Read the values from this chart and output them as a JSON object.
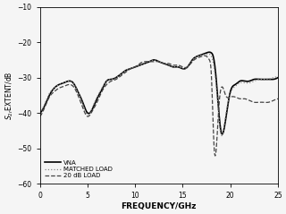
{
  "title": "",
  "xlabel": "FREQUENCY/GHz",
  "ylabel": "$S_{2r}$EXTENT/dB",
  "xlim": [
    0,
    25
  ],
  "ylim": [
    -60,
    -10
  ],
  "yticks": [
    -60,
    -50,
    -40,
    -30,
    -20,
    -10
  ],
  "xticks": [
    0,
    5,
    10,
    15,
    20,
    25
  ],
  "legend": [
    "VNA",
    "MATCHED LOAD",
    "20 dB LOAD"
  ],
  "background_color": "#f5f5f5",
  "vna_freq": [
    0,
    0.5,
    1.0,
    1.5,
    2.0,
    2.5,
    3.0,
    3.5,
    4.0,
    4.5,
    5.0,
    5.5,
    6.0,
    6.5,
    7.0,
    7.5,
    8.0,
    8.5,
    9.0,
    9.5,
    10.0,
    10.5,
    11.0,
    11.5,
    12.0,
    12.5,
    13.0,
    13.5,
    14.0,
    14.5,
    15.0,
    15.5,
    16.0,
    16.5,
    17.0,
    17.5,
    18.0,
    18.2,
    18.5,
    19.0,
    19.5,
    20.0,
    20.5,
    21.0,
    21.5,
    22.0,
    22.5,
    23.0,
    23.5,
    24.0,
    24.5,
    25.0
  ],
  "vna_vals": [
    -40,
    -38,
    -35,
    -33,
    -32,
    -31.5,
    -31,
    -31.5,
    -34,
    -37,
    -40,
    -39,
    -36,
    -33.5,
    -31,
    -30.5,
    -30,
    -29,
    -28,
    -27.5,
    -27,
    -26.5,
    -26,
    -25.5,
    -25,
    -25.5,
    -26,
    -26.5,
    -27,
    -27,
    -27.5,
    -27,
    -25,
    -24,
    -23.5,
    -23,
    -23,
    -24,
    -30,
    -45,
    -42,
    -34,
    -32,
    -31,
    -31,
    -31,
    -30.5,
    -30.5,
    -30.5,
    -30.5,
    -30.5,
    -30
  ],
  "match_freq": [
    0,
    0.5,
    1.0,
    1.5,
    2.0,
    2.5,
    3.0,
    3.5,
    4.0,
    4.5,
    5.0,
    5.5,
    6.0,
    6.5,
    7.0,
    7.5,
    8.0,
    8.5,
    9.0,
    9.5,
    10.0,
    10.5,
    11.0,
    11.5,
    12.0,
    12.5,
    13.0,
    13.5,
    14.0,
    14.5,
    15.0,
    15.5,
    16.0,
    16.5,
    17.0,
    17.5,
    18.0,
    18.5,
    19.0,
    19.5,
    20.0,
    20.5,
    21.0,
    21.5,
    22.0,
    22.5,
    23.0,
    23.5,
    24.0,
    24.5,
    25.0
  ],
  "match_vals": [
    -40,
    -37.5,
    -34.5,
    -33,
    -32,
    -31.5,
    -31,
    -31.5,
    -34,
    -37.5,
    -40.5,
    -38.5,
    -35.5,
    -33,
    -31,
    -30.5,
    -30,
    -29,
    -28,
    -27.5,
    -27,
    -26.5,
    -26,
    -25.5,
    -25,
    -25.5,
    -26,
    -26.5,
    -27,
    -27,
    -27.5,
    -27,
    -25,
    -24,
    -23.5,
    -23.5,
    -24,
    -32,
    -46,
    -41,
    -34.5,
    -32.5,
    -31.5,
    -31.5,
    -31.5,
    -31,
    -30.5,
    -30.5,
    -30.5,
    -30,
    -30
  ],
  "load_freq": [
    0,
    0.5,
    1.0,
    1.5,
    2.0,
    2.5,
    3.0,
    3.5,
    4.0,
    4.5,
    5.0,
    5.5,
    6.0,
    6.5,
    7.0,
    7.5,
    8.0,
    8.5,
    9.0,
    9.5,
    10.0,
    10.5,
    11.0,
    11.5,
    12.0,
    12.5,
    13.0,
    13.5,
    14.0,
    14.5,
    15.0,
    15.5,
    16.0,
    16.5,
    17.0,
    17.5,
    17.8,
    18.0,
    18.3,
    18.8,
    19.5,
    20.0,
    20.5,
    21.0,
    21.5,
    22.0,
    22.5,
    23.0,
    23.5,
    24.0,
    24.5,
    25.0
  ],
  "load_vals": [
    -41,
    -38.5,
    -35.5,
    -34,
    -33,
    -32.5,
    -32,
    -32.5,
    -35,
    -38.5,
    -41,
    -39.5,
    -37,
    -34,
    -32,
    -31,
    -30.5,
    -29.5,
    -28.5,
    -27.5,
    -27,
    -26,
    -25.5,
    -25.5,
    -25.5,
    -25.5,
    -26,
    -26,
    -26.5,
    -26.5,
    -27,
    -27,
    -25.5,
    -24.5,
    -24,
    -24,
    -25,
    -29,
    -50,
    -38,
    -35,
    -35.5,
    -35.5,
    -36,
    -36,
    -36.5,
    -37,
    -37,
    -37,
    -37,
    -36.5,
    -36
  ]
}
